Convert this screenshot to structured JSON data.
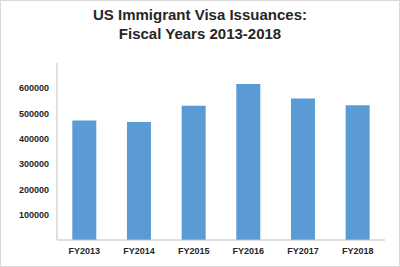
{
  "chart_data": {
    "type": "bar",
    "title": "US Immigrant Visa Issuances:",
    "subtitle": "Fiscal Years 2013-2018",
    "categories": [
      "FY2013",
      "FY2014",
      "FY2015",
      "FY2016",
      "FY2017",
      "FY2018"
    ],
    "values": [
      473000,
      467000,
      531000,
      617000,
      560000,
      533000
    ],
    "color": "#5b9bd5",
    "ylim": [
      0,
      700000
    ],
    "yticks": [
      100000,
      200000,
      300000,
      400000,
      500000,
      600000
    ],
    "grid": false
  }
}
